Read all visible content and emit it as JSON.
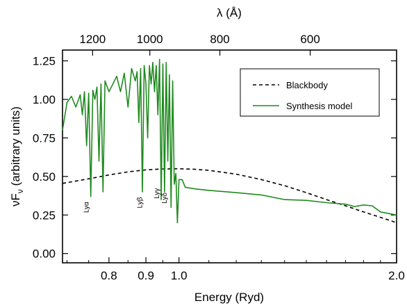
{
  "chart_data": {
    "type": "line",
    "xlabel": "Energy (Ryd)",
    "top_xlabel": "λ (Å)",
    "ylabel": "νF_ν (arbitrary units)",
    "x_scale": "log",
    "xlim": [
      0.69,
      2.0
    ],
    "ylim": [
      -0.06,
      1.32
    ],
    "grid": false,
    "legend_position": "top-right",
    "x_ticks": [
      0.8,
      0.9,
      1.0,
      2.0
    ],
    "x_tick_labels": [
      "0.8",
      "0.9",
      "1.0",
      "2.0"
    ],
    "y_ticks": [
      0.0,
      0.25,
      0.5,
      0.75,
      1.0,
      1.25
    ],
    "y_tick_labels": [
      "0.00",
      "0.25",
      "0.50",
      "0.75",
      "1.00",
      "1.25"
    ],
    "top_ticks_angstrom": [
      1200,
      1000,
      800,
      600
    ],
    "top_tick_labels": [
      "1200",
      "1000",
      "800",
      "600"
    ],
    "series": [
      {
        "name": "Blackbody",
        "style": "dashed",
        "color": "#000000",
        "x": [
          0.69,
          0.75,
          0.8,
          0.85,
          0.9,
          0.95,
          1.0,
          1.05,
          1.1,
          1.2,
          1.3,
          1.4,
          1.5,
          1.6,
          1.7,
          1.8,
          1.9,
          2.0
        ],
        "y": [
          0.455,
          0.485,
          0.51,
          0.53,
          0.543,
          0.549,
          0.55,
          0.547,
          0.54,
          0.515,
          0.48,
          0.44,
          0.395,
          0.35,
          0.31,
          0.27,
          0.235,
          0.2
        ]
      },
      {
        "name": "Synthesis model",
        "style": "solid",
        "color": "#1f8a1f",
        "x": [
          0.69,
          0.7,
          0.71,
          0.72,
          0.73,
          0.735,
          0.74,
          0.745,
          0.75,
          0.755,
          0.76,
          0.765,
          0.77,
          0.775,
          0.78,
          0.785,
          0.79,
          0.8,
          0.81,
          0.82,
          0.83,
          0.84,
          0.85,
          0.86,
          0.87,
          0.875,
          0.88,
          0.885,
          0.89,
          0.895,
          0.9,
          0.905,
          0.91,
          0.915,
          0.92,
          0.925,
          0.93,
          0.935,
          0.94,
          0.945,
          0.95,
          0.955,
          0.96,
          0.965,
          0.97,
          0.975,
          0.98,
          0.985,
          0.99,
          0.995,
          1.0,
          1.01,
          1.02,
          1.05,
          1.1,
          1.2,
          1.3,
          1.4,
          1.5,
          1.6,
          1.7,
          1.75,
          1.8,
          1.85,
          1.9,
          2.0
        ],
        "y": [
          0.8,
          0.98,
          1.02,
          0.95,
          1.03,
          0.9,
          1.05,
          0.7,
          1.04,
          0.37,
          1.06,
          1.0,
          1.08,
          0.6,
          1.1,
          0.4,
          1.12,
          1.05,
          1.1,
          1.15,
          1.05,
          1.17,
          0.95,
          1.2,
          1.12,
          1.18,
          0.85,
          1.2,
          0.4,
          1.22,
          1.1,
          0.75,
          1.22,
          1.1,
          1.24,
          1.05,
          1.22,
          0.9,
          1.26,
          0.35,
          1.23,
          0.4,
          1.24,
          0.6,
          1.16,
          0.3,
          1.12,
          0.45,
          0.52,
          0.2,
          0.48,
          0.48,
          0.43,
          0.42,
          0.41,
          0.395,
          0.38,
          0.35,
          0.345,
          0.33,
          0.32,
          0.305,
          0.315,
          0.31,
          0.27,
          0.25
        ]
      }
    ],
    "annotations": [
      {
        "text": "Lyα",
        "x": 0.75,
        "y": 0.3
      },
      {
        "text": "Lyβ",
        "x": 0.889,
        "y": 0.33
      },
      {
        "text": "Lyγ",
        "x": 0.938,
        "y": 0.39
      },
      {
        "text": "Lyδ",
        "x": 0.962,
        "y": 0.36
      }
    ]
  }
}
